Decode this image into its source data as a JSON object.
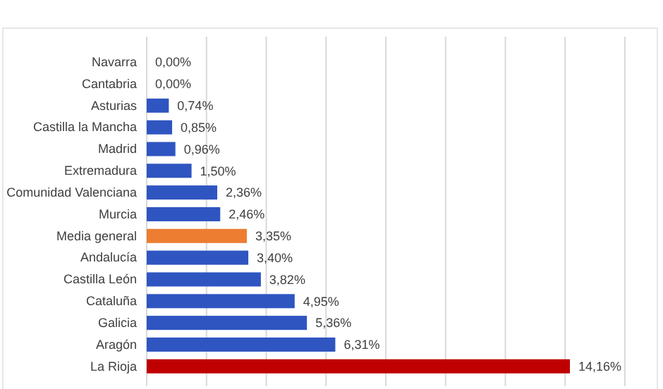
{
  "chart_data": {
    "type": "bar",
    "orientation": "horizontal",
    "categories": [
      "Navarra",
      "Cantabria",
      "Asturias",
      "Castilla la Mancha",
      "Madrid",
      "Extremadura",
      "Comunidad Valenciana",
      "Murcia",
      "Media general",
      "Andalucía",
      "Castilla León",
      "Cataluña",
      "Galicia",
      "Aragón",
      "La Rioja"
    ],
    "values": [
      0,
      0,
      0.74,
      0.85,
      0.96,
      1.5,
      2.36,
      2.46,
      3.35,
      3.4,
      3.82,
      4.95,
      5.36,
      6.31,
      14.16
    ],
    "colors": [
      "#2f55c1",
      "#2f55c1",
      "#2f55c1",
      "#2f55c1",
      "#2f55c1",
      "#2f55c1",
      "#2f55c1",
      "#2f55c1",
      "#ed7d31",
      "#2f55c1",
      "#2f55c1",
      "#2f55c1",
      "#2f55c1",
      "#2f55c1",
      "#c00000"
    ],
    "value_labels": [
      "0,00%",
      "0,00%",
      "0,74%",
      "0,85%",
      "0,96%",
      "1,50%",
      "2,36%",
      "2,46%",
      "3,35%",
      "3,40%",
      "3,82%",
      "4,95%",
      "5,36%",
      "6,31%",
      "14,16%"
    ],
    "xlim": [
      0,
      16
    ],
    "xticks": [
      {
        "value": 0,
        "label": null
      },
      {
        "value": 2,
        "label": null
      },
      {
        "value": 4,
        "label": null
      },
      {
        "value": 6,
        "label": null
      },
      {
        "value": 8,
        "label": null
      },
      {
        "value": 10,
        "label": null
      },
      {
        "value": 12,
        "label": null
      },
      {
        "value": 14,
        "label": null
      },
      {
        "value": 16,
        "label": null
      }
    ],
    "grid": "x",
    "tick_labels": "y"
  }
}
